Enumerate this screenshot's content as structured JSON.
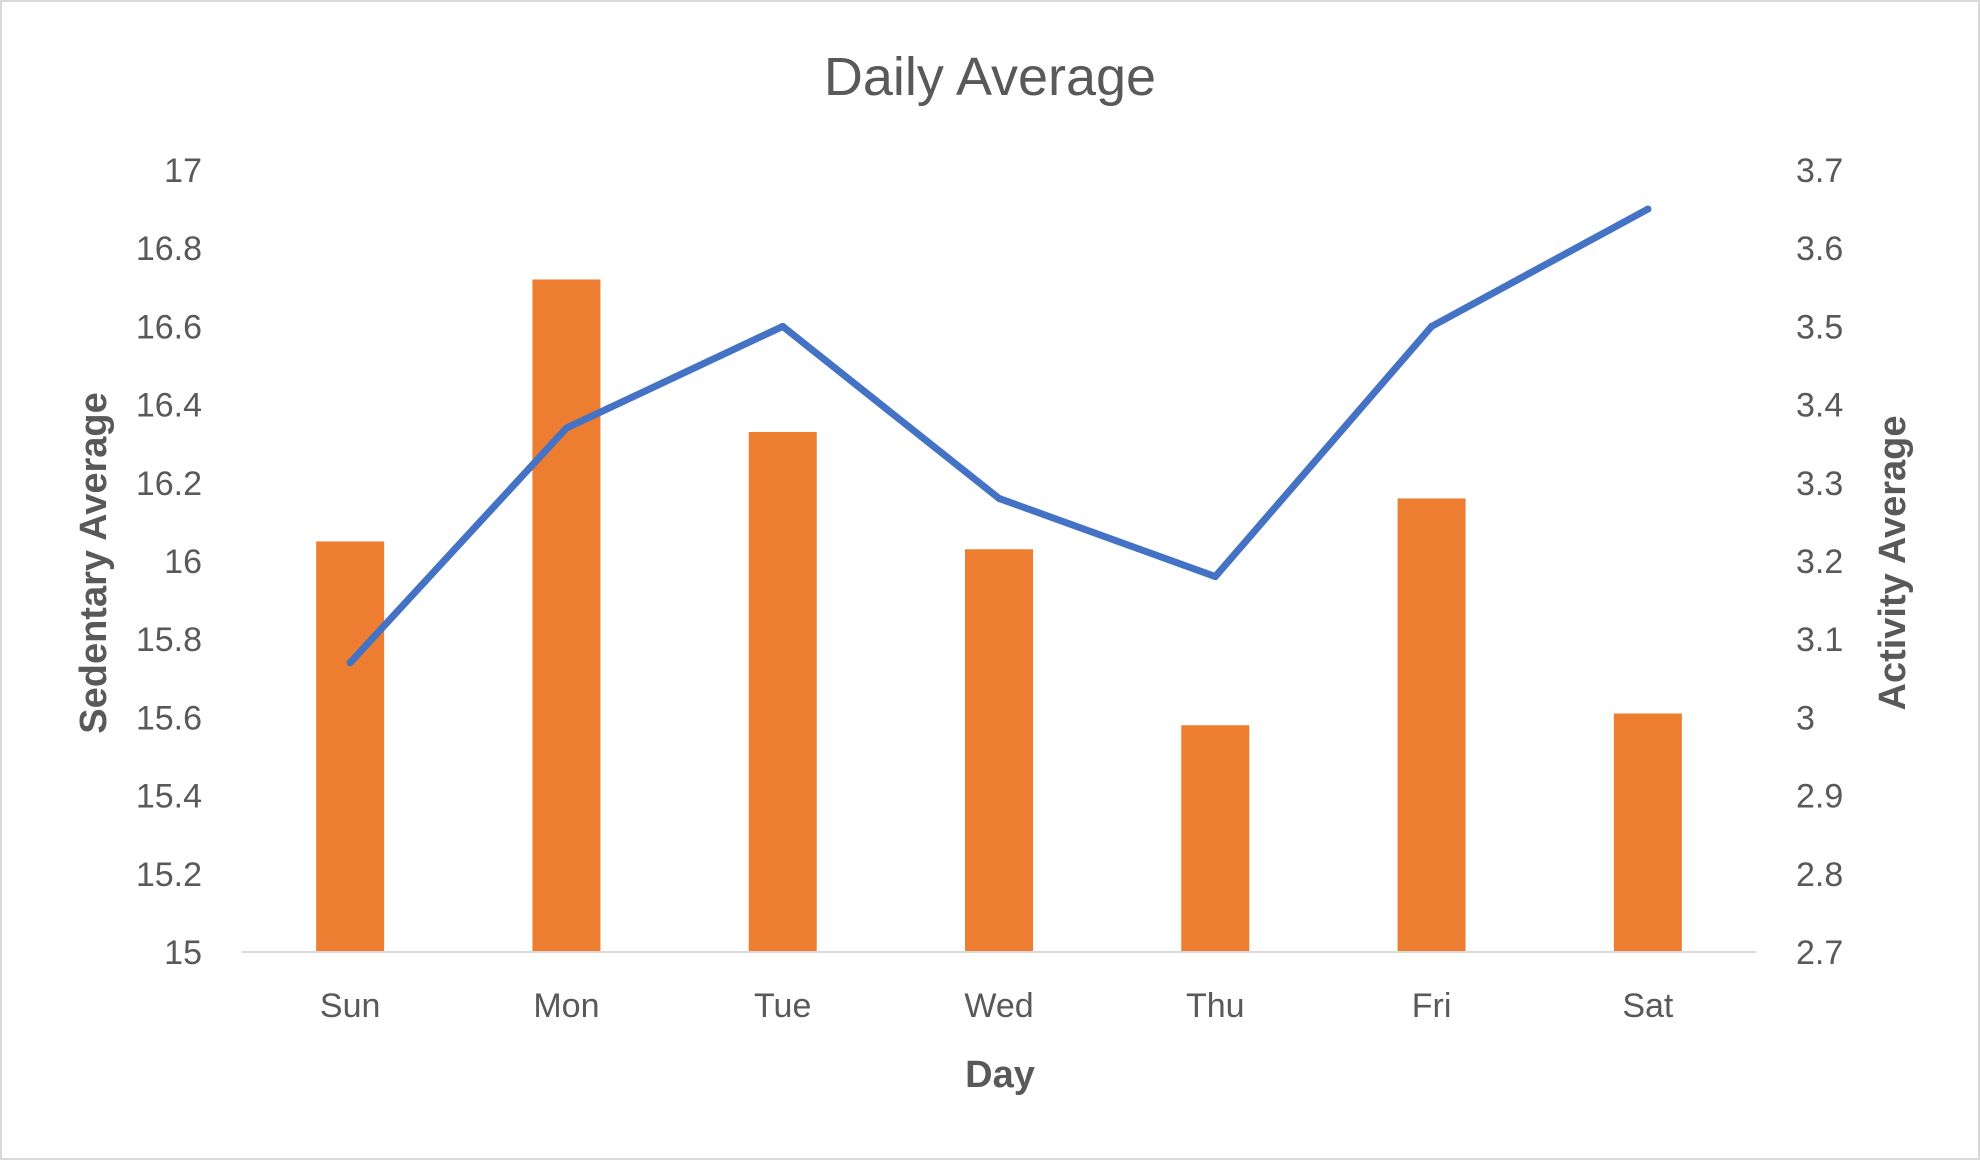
{
  "chart_data": {
    "type": "bar",
    "title": "Daily Average",
    "xlabel": "Day",
    "categories": [
      "Sun",
      "Mon",
      "Tue",
      "Wed",
      "Thu",
      "Fri",
      "Sat"
    ],
    "series": [
      {
        "type": "bar",
        "axis": "left",
        "color": "#ED7D31",
        "values": [
          16.05,
          16.72,
          16.33,
          16.03,
          15.58,
          16.16,
          15.61
        ]
      },
      {
        "type": "line",
        "axis": "right",
        "color": "#4472C4",
        "values": [
          3.07,
          3.37,
          3.5,
          3.28,
          3.18,
          3.5,
          3.65
        ]
      }
    ],
    "y_left": {
      "label": "Sedentary Average",
      "lim": [
        15,
        17
      ],
      "ticks": [
        "15",
        "15.2",
        "15.4",
        "15.6",
        "15.8",
        "16",
        "16.2",
        "16.4",
        "16.6",
        "16.8",
        "17"
      ]
    },
    "y_right": {
      "label": "Activity Average",
      "lim": [
        2.7,
        3.7
      ],
      "ticks": [
        "2.7",
        "2.8",
        "2.9",
        "3",
        "3.1",
        "3.2",
        "3.3",
        "3.4",
        "3.5",
        "3.6",
        "3.7"
      ]
    },
    "grid": false,
    "legend": "none"
  }
}
